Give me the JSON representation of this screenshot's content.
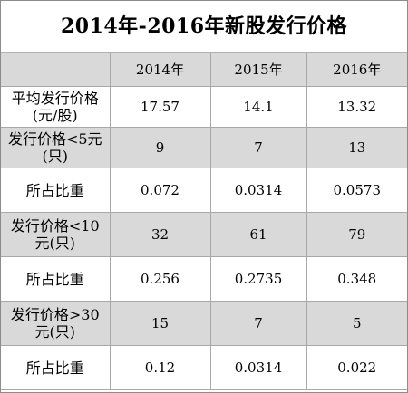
{
  "title": "2014年-2016年新股发行价格",
  "table": {
    "header": [
      "",
      "2014年",
      "2015年",
      "2016年"
    ],
    "rows": [
      {
        "label_line1": "平均发行价格",
        "label_line2": "(元/股)",
        "values": [
          "17.57",
          "14.1",
          "13.32"
        ]
      },
      {
        "label_line1": "发行价格<5元",
        "label_line2": "(只)",
        "values": [
          "9",
          "7",
          "13"
        ]
      },
      {
        "label_line1": "所占比重",
        "label_line2": "",
        "values": [
          "0.072",
          "0.0314",
          "0.0573"
        ]
      },
      {
        "label_line1": "发行价格<10",
        "label_line2": "元(只)",
        "values": [
          "32",
          "61",
          "79"
        ]
      },
      {
        "label_line1": "所占比重",
        "label_line2": "",
        "values": [
          "0.256",
          "0.2735",
          "0.348"
        ]
      },
      {
        "label_line1": "发行价格>30",
        "label_line2": "元(只)",
        "values": [
          "15",
          "7",
          "5"
        ]
      },
      {
        "label_line1": "所占比重",
        "label_line2": "",
        "values": [
          "0.12",
          "0.0314",
          "0.022"
        ]
      }
    ]
  }
}
